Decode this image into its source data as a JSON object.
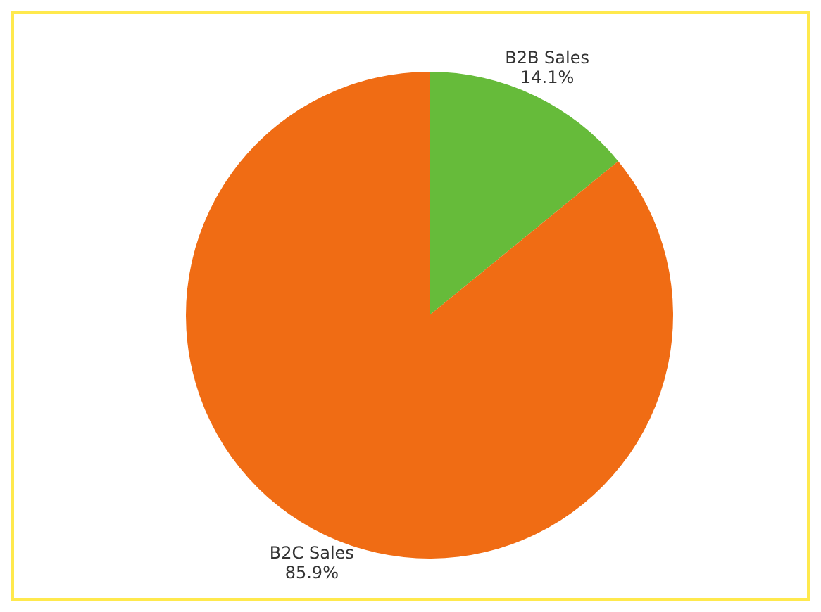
{
  "chart_data": {
    "type": "pie",
    "categories": [
      "B2B Sales",
      "B2C Sales"
    ],
    "values": [
      14.1,
      85.9
    ],
    "value_labels": [
      "14.1%",
      "85.9%"
    ],
    "colors": [
      "#66bb3a",
      "#f06c14"
    ],
    "legend": false
  }
}
